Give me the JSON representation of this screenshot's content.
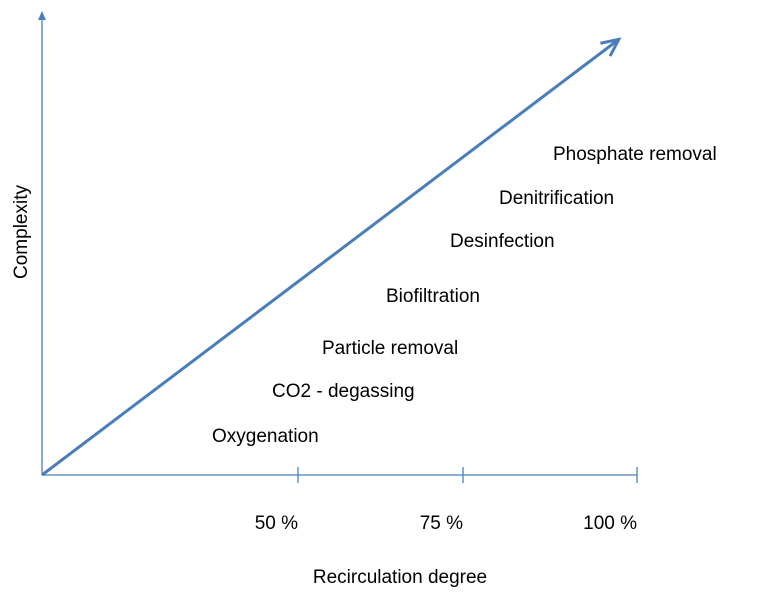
{
  "y_axis": {
    "label": "Complexity"
  },
  "x_axis": {
    "label": "Recirculation degree",
    "ticks": [
      "50 %",
      "75 %",
      "100 %"
    ]
  },
  "steps": [
    "Oxygenation",
    "CO2 - degassing",
    "Particle removal",
    "Biofiltration",
    "Desinfection",
    "Denitrification",
    "Phosphate removal"
  ]
}
